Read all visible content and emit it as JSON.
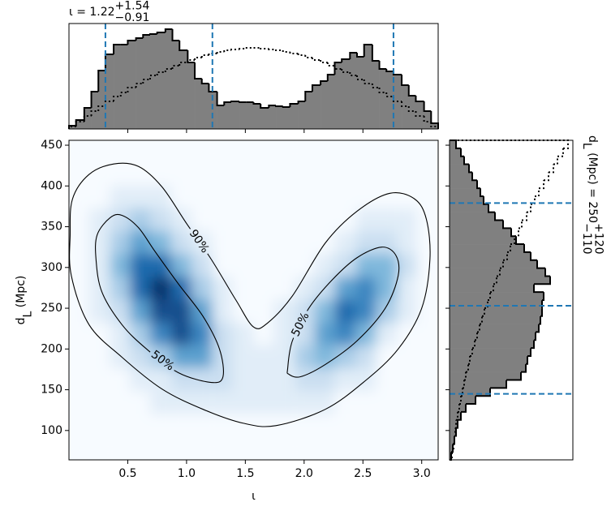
{
  "chart_data": [
    {
      "type": "histogram",
      "orientation": "vertical",
      "title": [
        {
          "text": "ι = 1.22"
        },
        {
          "text": "+1.54",
          "pos": "sup"
        },
        {
          "text": "−0.91",
          "pos": "sub"
        }
      ],
      "bins": [
        0,
        0.06,
        0.13,
        0.19,
        0.25,
        0.31,
        0.38,
        0.44,
        0.5,
        0.57,
        0.63,
        0.69,
        0.75,
        0.82,
        0.88,
        0.94,
        1.01,
        1.07,
        1.13,
        1.19,
        1.26,
        1.32,
        1.38,
        1.45,
        1.51,
        1.57,
        1.63,
        1.7,
        1.76,
        1.82,
        1.88,
        1.95,
        2.01,
        2.07,
        2.14,
        2.2,
        2.26,
        2.32,
        2.39,
        2.45,
        2.51,
        2.58,
        2.64,
        2.7,
        2.76,
        2.83,
        2.89,
        2.95,
        3.02,
        3.08,
        3.14
      ],
      "series": [
        {
          "style": "filled",
          "color": "#808080",
          "edgecolor": "#000000",
          "values": [
            4,
            11,
            26,
            46,
            72,
            92,
            104,
            104,
            109,
            112,
            116,
            117,
            119,
            123,
            109,
            97,
            82,
            62,
            56,
            46,
            29,
            33,
            34,
            33,
            33,
            31,
            26,
            29,
            28,
            27,
            31,
            34,
            46,
            54,
            59,
            67,
            82,
            86,
            94,
            89,
            104,
            84,
            74,
            71,
            67,
            54,
            41,
            34,
            22,
            7
          ]
        },
        {
          "style": "dotted",
          "color": "#000000",
          "values": [
            3,
            9,
            16,
            22,
            28,
            34,
            40,
            45,
            51,
            56,
            61,
            66,
            70,
            74,
            78,
            82,
            85,
            88,
            91,
            93,
            95,
            97,
            98,
            99,
            100,
            100,
            99,
            98,
            97,
            95,
            93,
            91,
            88,
            85,
            82,
            78,
            74,
            70,
            66,
            61,
            56,
            51,
            45,
            40,
            34,
            28,
            22,
            16,
            9,
            3
          ]
        }
      ],
      "xlim": [
        0,
        3.14
      ],
      "ylim": [
        0,
        130
      ],
      "xticks": [
        0.5,
        1,
        1.5,
        2,
        2.5,
        3
      ],
      "quantiles": [
        0.31,
        1.22,
        2.76
      ],
      "quantile_color": "#1f77b4"
    },
    {
      "type": "heatmap",
      "colormap": "Blues",
      "x": [
        0.087,
        0.26,
        0.44,
        0.61,
        0.78,
        0.96,
        1.13,
        1.31,
        1.48,
        1.66,
        1.83,
        2.01,
        2.18,
        2.35,
        2.53,
        2.7,
        2.88,
        3.05
      ],
      "y": [
        442,
        414,
        386,
        358,
        330,
        302,
        274,
        246,
        218,
        190,
        162,
        134,
        106,
        78
      ],
      "values": [
        [
          0,
          0,
          0,
          0,
          0,
          0,
          0,
          0,
          0,
          0,
          0,
          0,
          0,
          0,
          0,
          0,
          0,
          0
        ],
        [
          0,
          0,
          0,
          0,
          0,
          0,
          0,
          0,
          0,
          0,
          0,
          0,
          0,
          0,
          0,
          0,
          0,
          0
        ],
        [
          0,
          0,
          1,
          1,
          1,
          0,
          0,
          0,
          0,
          0,
          0,
          0,
          0,
          0,
          0,
          0,
          0,
          0
        ],
        [
          0,
          1,
          2,
          3,
          2,
          1,
          0,
          0,
          0,
          0,
          0,
          0,
          0,
          0,
          1,
          1,
          1,
          0
        ],
        [
          0,
          1,
          3,
          5,
          4,
          2,
          1,
          0,
          0,
          0,
          0,
          0,
          0,
          1,
          2,
          2,
          1,
          0
        ],
        [
          0,
          1,
          4,
          7,
          7,
          4,
          2,
          0,
          0,
          0,
          0,
          0,
          1,
          2,
          4,
          4,
          2,
          0
        ],
        [
          0,
          1,
          3,
          7,
          9,
          7,
          3,
          1,
          0,
          0,
          0,
          1,
          2,
          5,
          6,
          4,
          1,
          0
        ],
        [
          0,
          1,
          2,
          5,
          8,
          8,
          5,
          1,
          0,
          0,
          1,
          2,
          4,
          7,
          6,
          3,
          1,
          0
        ],
        [
          0,
          0,
          1,
          3,
          6,
          8,
          6,
          2,
          1,
          0,
          1,
          2,
          5,
          6,
          4,
          1,
          0,
          0
        ],
        [
          0,
          0,
          1,
          2,
          3,
          5,
          5,
          2,
          1,
          1,
          1,
          3,
          4,
          3,
          2,
          0,
          0,
          0
        ],
        [
          0,
          0,
          0,
          1,
          1,
          2,
          2,
          2,
          1,
          1,
          1,
          2,
          2,
          1,
          1,
          0,
          0,
          0
        ],
        [
          0,
          0,
          0,
          0,
          1,
          1,
          1,
          1,
          1,
          1,
          1,
          1,
          1,
          0,
          0,
          0,
          0,
          0
        ],
        [
          0,
          0,
          0,
          0,
          0,
          0,
          0,
          0,
          0,
          0,
          0,
          0,
          0,
          0,
          0,
          0,
          0,
          0
        ],
        [
          0,
          0,
          0,
          0,
          0,
          0,
          0,
          0,
          0,
          0,
          0,
          0,
          0,
          0,
          0,
          0,
          0,
          0
        ]
      ],
      "xlim": [
        0,
        3.14
      ],
      "ylim": [
        64,
        456
      ],
      "xticks": [
        0.5,
        {
          "value": 1,
          "label": "1.0"
        },
        1.5,
        {
          "value": 2,
          "label": "2.0"
        },
        2.5,
        {
          "value": 3,
          "label": "3.0"
        }
      ],
      "yticks": [
        100,
        150,
        200,
        250,
        300,
        350,
        400,
        450
      ],
      "xlabel": [
        {
          "text": "ι"
        }
      ],
      "ylabel": [
        {
          "text": "d"
        },
        {
          "text": "L",
          "pos": "sub"
        },
        {
          "text": " (Mpc)"
        }
      ],
      "contour_color": "#000000",
      "contours": [
        {
          "label": "90%",
          "x": [
            0.03,
            0.17,
            0.38,
            0.59,
            0.79,
            1.0,
            1.21,
            1.42,
            1.57,
            1.69,
            1.9,
            2.18,
            2.45,
            2.73,
            2.94,
            3.04,
            3.07,
            3.0,
            2.8,
            2.52,
            2.18,
            1.76,
            1.48,
            1.14,
            0.79,
            0.45,
            0.17,
            0.02,
            0.01
          ],
          "y": [
            384,
            414,
            427,
            424,
            399,
            354,
            310,
            260,
            227,
            232,
            265,
            330,
            369,
            391,
            384,
            359,
            310,
            250,
            200,
            161,
            126,
            106,
            109,
            126,
            151,
            190,
            230,
            290,
            340
          ]
        },
        {
          "label": "50%",
          "x": [
            0.24,
            0.35,
            0.45,
            0.59,
            0.73,
            0.93,
            1.14,
            1.28,
            1.31,
            1.21,
            0.93,
            0.66,
            0.45,
            0.28,
            0.23
          ],
          "y": [
            340,
            361,
            364,
            349,
            320,
            280,
            240,
            200,
            166,
            159,
            171,
            200,
            230,
            270,
            310
          ]
        },
        {
          "label": "50%",
          "x": [
            1.86,
            1.9,
            2.04,
            2.24,
            2.45,
            2.66,
            2.78,
            2.8,
            2.69,
            2.45,
            2.18,
            1.97,
            1.87
          ],
          "y": [
            176,
            210,
            250,
            285,
            312,
            325,
            315,
            290,
            250,
            210,
            181,
            166,
            169
          ]
        }
      ]
    },
    {
      "type": "histogram",
      "orientation": "horizontal",
      "title": [
        {
          "text": "d"
        },
        {
          "text": "L",
          "pos": "sub"
        },
        {
          "text": " (Mpc) = 250"
        },
        {
          "text": "+120",
          "pos": "sup"
        },
        {
          "text": "−110",
          "pos": "sub"
        }
      ],
      "bins": [
        64,
        73.8,
        83.6,
        93.4,
        103.2,
        113,
        122.8,
        132.6,
        142.4,
        152.2,
        162,
        171.8,
        181.6,
        191.4,
        201.2,
        211,
        220.8,
        230.6,
        240.4,
        250.2,
        260,
        269.8,
        279.6,
        289.4,
        299.2,
        309,
        318.8,
        328.6,
        338.4,
        348.2,
        358,
        367.8,
        377.6,
        387.4,
        397.2,
        407,
        416.8,
        426.6,
        436.4,
        446.2,
        456
      ],
      "series": [
        {
          "style": "filled",
          "color": "#808080",
          "edgecolor": "#000000",
          "values": [
            2,
            4,
            6,
            8,
            10,
            14,
            20,
            32,
            50,
            70,
            88,
            94,
            96,
            100,
            104,
            106,
            110,
            112,
            114,
            114,
            116,
            104,
            124,
            118,
            108,
            100,
            92,
            82,
            76,
            66,
            56,
            48,
            42,
            38,
            34,
            28,
            24,
            18,
            14,
            8
          ]
        },
        {
          "style": "dotted",
          "color": "#000000",
          "values": [
            3,
            5,
            6,
            7,
            8,
            10,
            12,
            14,
            16,
            18,
            20,
            23,
            25,
            28,
            31,
            34,
            37,
            40,
            43,
            47,
            50,
            54,
            58,
            62,
            66,
            71,
            75,
            80,
            85,
            89,
            95,
            100,
            105,
            110,
            116,
            122,
            128,
            133,
            140,
            146
          ]
        }
      ],
      "xlim": [
        0,
        152
      ],
      "ylim": [
        64,
        456
      ],
      "yticks": [
        100,
        150,
        200,
        250,
        300,
        350,
        400,
        450
      ],
      "quantiles": [
        145,
        253,
        379
      ],
      "quantile_color": "#1f77b4"
    }
  ]
}
